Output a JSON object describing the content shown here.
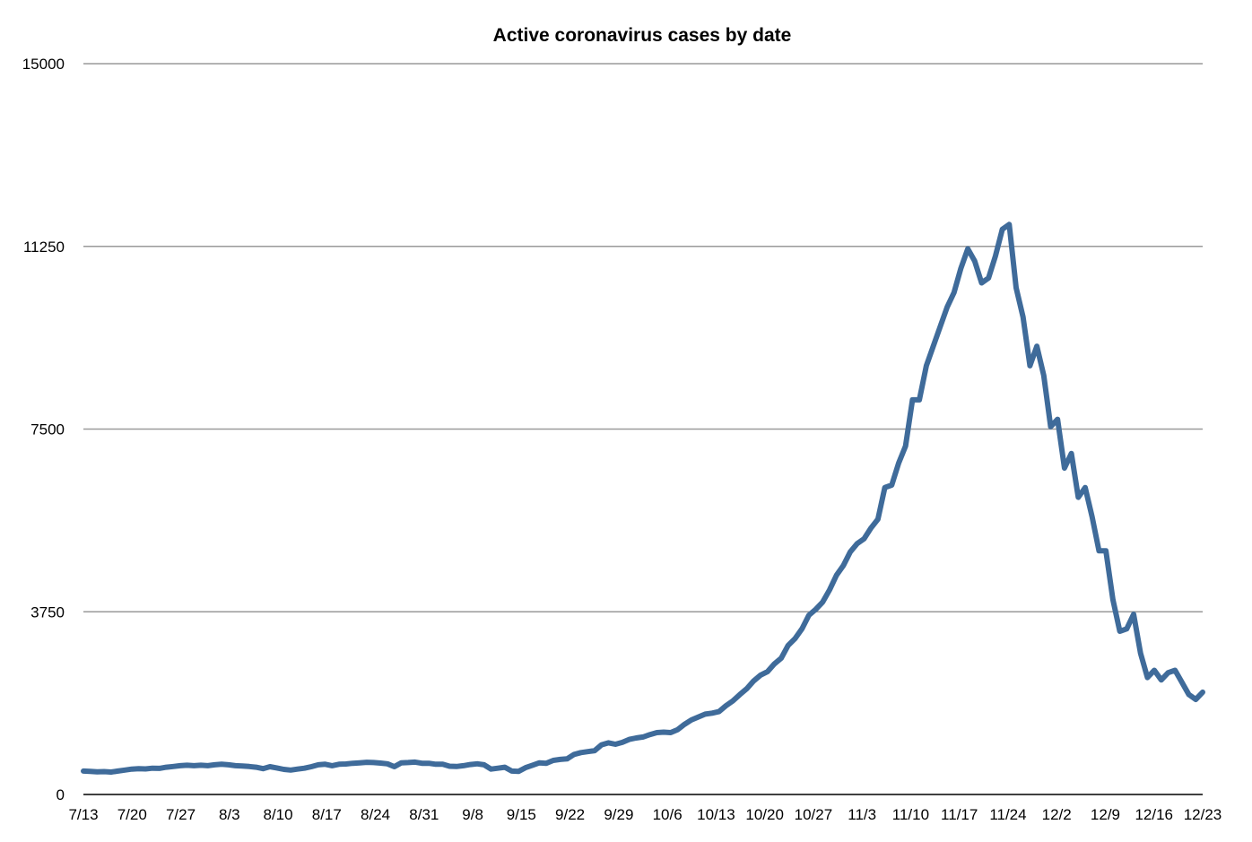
{
  "chart_data": {
    "type": "line",
    "title": "Active coronavirus cases by date",
    "xlabel": "",
    "ylabel": "",
    "ylim": [
      0,
      15000
    ],
    "yticks": [
      0,
      3750,
      7500,
      11250,
      15000
    ],
    "ytick_labels": [
      "0",
      "3750",
      "7500",
      "11250",
      "15000"
    ],
    "grid": true,
    "legend": "none",
    "line_color": "#3f6b9a",
    "xtick_labels": [
      "7/13",
      "7/20",
      "7/27",
      "8/3",
      "8/10",
      "8/17",
      "8/24",
      "8/31",
      "9/8",
      "9/15",
      "9/22",
      "9/29",
      "10/6",
      "10/13",
      "10/20",
      "10/27",
      "11/3",
      "11/10",
      "11/17",
      "11/24",
      "12/2",
      "12/9",
      "12/16",
      "12/23"
    ],
    "series": [
      {
        "values": [
          480,
          475,
          465,
          470,
          460,
          480,
          500,
          520,
          530,
          525,
          540,
          535,
          560,
          575,
          590,
          600,
          590,
          600,
          590,
          610,
          620,
          610,
          590,
          585,
          575,
          560,
          530,
          570,
          545,
          515,
          500,
          520,
          540,
          570,
          610,
          620,
          590,
          620,
          625,
          640,
          650,
          660,
          655,
          645,
          630,
          570,
          650,
          655,
          665,
          640,
          640,
          620,
          620,
          580,
          575,
          590,
          615,
          630,
          610,
          520,
          540,
          560,
          480,
          475,
          550,
          600,
          650,
          640,
          700,
          720,
          730,
          820,
          860,
          880,
          900,
          1020,
          1060,
          1030,
          1070,
          1130,
          1160,
          1180,
          1230,
          1270,
          1280,
          1270,
          1330,
          1440,
          1530,
          1590,
          1650,
          1670,
          1700,
          1820,
          1920,
          2050,
          2170,
          2330,
          2450,
          2520,
          2680,
          2800,
          3060,
          3200,
          3400,
          3680,
          3800,
          3950,
          4200,
          4500,
          4700,
          4980,
          5150,
          5250,
          5470,
          5650,
          6300,
          6350,
          6800,
          7150,
          8100,
          8100,
          8800,
          9200,
          9600,
          10000,
          10300,
          10800,
          11200,
          10950,
          10500,
          10600,
          11050,
          11600,
          11700,
          10400,
          9800,
          8800,
          9200,
          8600,
          7550,
          7700,
          6700,
          7000,
          6100,
          6300,
          5700,
          5000,
          5000,
          4000,
          3350,
          3400,
          3700,
          2900,
          2400,
          2550,
          2350,
          2500,
          2550,
          2300,
          2050,
          1950,
          2100
        ]
      }
    ]
  }
}
